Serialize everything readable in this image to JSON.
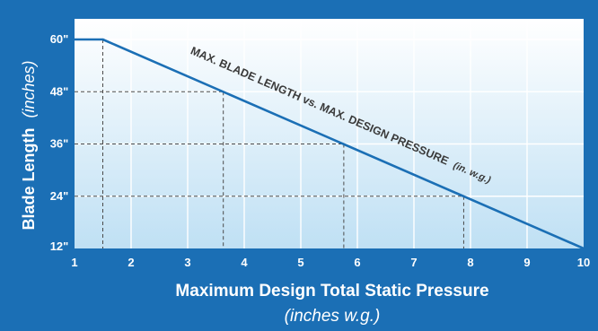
{
  "chart_data": {
    "type": "line",
    "title": "MAX. BLADE LENGTH vs. MAX. DESIGN PRESSURE",
    "title_unit": "(in. w.g.)",
    "xlabel": "Maximum Design Total Static Pressure",
    "xlabel_unit": "(inches w.g.)",
    "ylabel": "Blade Length",
    "ylabel_unit": "(inches)",
    "x_ticks": [
      "1",
      "2",
      "3",
      "4",
      "5",
      "6",
      "7",
      "8",
      "9",
      "10"
    ],
    "y_ticks": [
      "12\"",
      "24\"",
      "36\"",
      "48\"",
      "60\""
    ],
    "xlim": [
      1,
      10
    ],
    "ylim": [
      12,
      60
    ],
    "grid": true,
    "series": [
      {
        "x": [
          1,
          1.5,
          10
        ],
        "y": [
          60,
          60,
          12
        ]
      }
    ],
    "reference_points": [
      {
        "x": 1.5,
        "y": 60
      },
      {
        "x": 3.63,
        "y": 48
      },
      {
        "x": 5.76,
        "y": 36
      },
      {
        "x": 7.88,
        "y": 24
      }
    ],
    "colors": {
      "background": "#1b6fb5",
      "plot_top": "#ffffff",
      "plot_bottom": "#bfe0f4",
      "line": "#1b6fb5",
      "guides": "#4a4a4a",
      "annotation": "#3a3a3a",
      "text": "#ffffff"
    }
  }
}
